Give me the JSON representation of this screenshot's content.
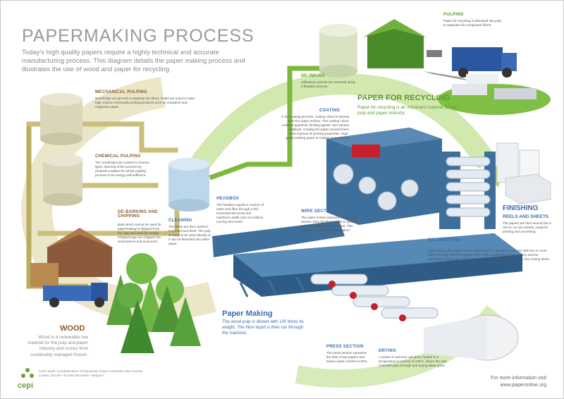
{
  "header": {
    "title": "PAPERMAKING PROCESS",
    "intro": "Today's high quality papers require a highly technical and accurate manufacturing process. This diagram details the paper making process and illustrates the use of wood and paper for recycling."
  },
  "steps": {
    "mechanical_pulping": {
      "label": "MECHANICAL PULPING",
      "text": "Woodchips are ground to separate the fibres. Pulps are used to make high volume commodity printing products such as newsprint and magazine paper."
    },
    "chemical_pulping": {
      "label": "CHEMICAL PULPING",
      "text": "The woodchips are cooked to remove lignin. Burning of the process by-products enables the whole pulping process to be energy self-sufficient."
    },
    "debarking": {
      "label": "DE-BARKING AND CHIPPING",
      "text": "Bark which cannot be used for papermaking is stripped from the logs and used for energy. Stripped logs are chipped into small pieces and recovered."
    },
    "cleaning": {
      "label": "CLEANING",
      "text": "The fibres are then washed, screened and dried. The pulp is ready to be used directly or it can be bleached into white paper."
    },
    "headbox": {
      "label": "HEADBOX",
      "text": "The headbox squirts a mixture of water and fibre through a thin horizontal slit across the machine's width onto an endless moving wire mesh."
    },
    "wire_section": {
      "label": "WIRE SECTION",
      "text": "The water is then removed on this wire section, then the fibres starts to spread and consolidate into a thin mat. This process is called \"sheet formation\"."
    },
    "press_section": {
      "label": "PRESS SECTION",
      "text": "The press section squeezes the web of wet papers and lowers water content to 50%."
    },
    "drying": {
      "label": "DRYING",
      "text": "A series of cast-iron cylinders, heated to a temperature in excess of 100ºC, where the web of sheets pass through and drying takes place."
    },
    "coating": {
      "label": "COATING",
      "text": "In the coating process, coating colour is spread onto the paper surface. The coating colour contains pigments, binding agents, and various additives. Coating the paper several times often improve its printing properties. High-grade printing paper is coated up to 3 times."
    },
    "calendering": {
      "label": "CALENDERING",
      "text": "After coating, the paper can be calendered. A calender is a device with two or more rollers through which the paper is run. The compression of the rollers and the application of heat give the paper its smooth and glossy properties, like ironing shirts."
    },
    "de_inking": {
      "label": "DE-INKING",
      "text": "Adhesives and ink are removed using a flotation process."
    },
    "pulping": {
      "label": "PULPING",
      "text": "Paper for recycling is dissolved into pulp to separate the component fibres."
    }
  },
  "callouts": {
    "wood": {
      "label": "WOOD",
      "text": "Wood is a renewable raw material for the pulp and paper industry and comes from sustainably managed forests."
    },
    "paper_making": {
      "label": "Paper Making",
      "text": "The wood pulp is diluted with 100 times its weight. The fibre liquid is then run through the machine."
    },
    "paper_recycling": {
      "label": "PAPER FOR RECYCLING",
      "text": "Paper for recycling is an important material for the pulp and paper industry."
    },
    "finishing": {
      "label": "FINISHING",
      "sub": "REELS AND SHEETS",
      "text": "The papers are then wound into a reel or cut into sheets, ready for printing and converting."
    }
  },
  "footer": {
    "logo": "cepi",
    "address": "CEPI aisbl • Confederation of European Paper Industries 250 Avenue Louise, box 80 • B-1050 Brussels • Belgium",
    "more_info_line1": "For more information visit",
    "more_info_line2": "www.paperonline.org"
  },
  "colors": {
    "title": "#9a9a9a",
    "wood": "#8a5a2a",
    "blue": "#3a6fb0",
    "green": "#5a9a2a",
    "pipe": "#c9be7a",
    "arrow_green": "#8cc63f",
    "arrow_tan": "#d8d2a6",
    "machine": "#3e6f9a"
  }
}
